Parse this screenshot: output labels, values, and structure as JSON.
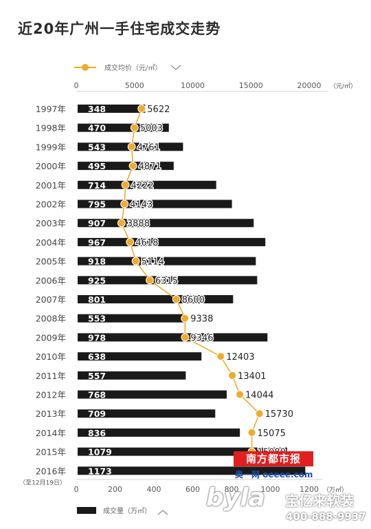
{
  "chart_data": {
    "type": "bar+line",
    "title": "近20年广州一手住宅成交走势",
    "categories": [
      "1997年",
      "1998年",
      "1999年",
      "2000年",
      "2001年",
      "2002年",
      "2003年",
      "2004年",
      "2005年",
      "2006年",
      "2007年",
      "2008年",
      "2009年",
      "2010年",
      "2011年",
      "2012年",
      "2013年",
      "2014年",
      "2015年",
      "2016年"
    ],
    "category_note": "（至12月19日）",
    "volume": {
      "name": "成交量（万㎡）",
      "values": [
        348,
        470,
        543,
        495,
        714,
        795,
        907,
        967,
        918,
        925,
        801,
        553,
        978,
        638,
        557,
        768,
        709,
        836,
        1079,
        1173
      ],
      "xlim": [
        0,
        1200
      ],
      "ticks": [
        0,
        200,
        400,
        600,
        800,
        1000,
        1200
      ],
      "unit": "（万㎡）",
      "color": "#1a1a1a"
    },
    "price": {
      "name": "成交均价（元/㎡）",
      "values": [
        5622,
        5003,
        4761,
        4871,
        4222,
        4143,
        3888,
        4618,
        5114,
        6315,
        8600,
        9338,
        9346,
        12403,
        13401,
        14044,
        15730,
        15075,
        15080,
        null
      ],
      "xlim": [
        0,
        20000
      ],
      "ticks": [
        0,
        5000,
        10000,
        15000,
        20000
      ],
      "unit": "（元/㎡）",
      "color": "#f0aa2c"
    }
  },
  "watermarks": {
    "paper": "南方都市报",
    "site": "奥一网 oeeee.com",
    "logo": "byla",
    "logo_cn": "宝亿来软装",
    "phone": "400-888-9937"
  }
}
